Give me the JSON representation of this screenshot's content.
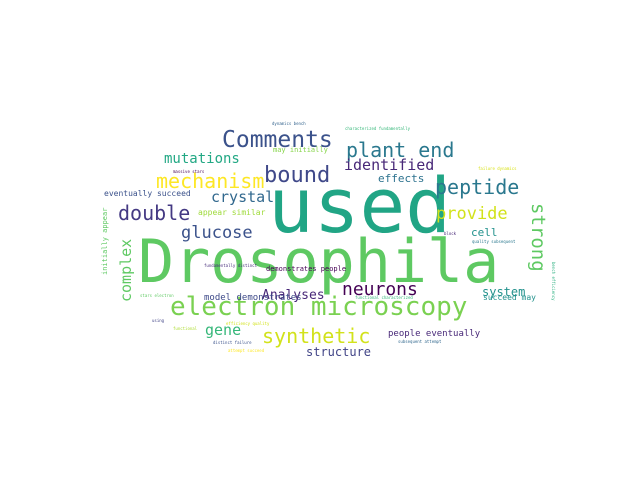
{
  "wordcloud": {
    "words": [
      {
        "text": "Drosophila",
        "color": "#5ec962"
      },
      {
        "text": "used",
        "color": "#21a585"
      },
      {
        "text": "electron microscopy",
        "color": "#7ad151"
      },
      {
        "text": "Comments",
        "color": "#3b528b"
      },
      {
        "text": "plant end",
        "color": "#2a788e"
      },
      {
        "text": "bound",
        "color": "#3f4889"
      },
      {
        "text": "mechanism",
        "color": "#fde725"
      },
      {
        "text": "peptide",
        "color": "#2a788e"
      },
      {
        "text": "double",
        "color": "#443983"
      },
      {
        "text": "synthetic",
        "color": "#d2e21b"
      },
      {
        "text": "neurons",
        "color": "#440154"
      },
      {
        "text": "strong",
        "color": "#5ec962"
      },
      {
        "text": "provide",
        "color": "#d2e21b"
      },
      {
        "text": "glucose",
        "color": "#3b528b"
      },
      {
        "text": "identified",
        "color": "#482878"
      },
      {
        "text": "mutations",
        "color": "#22a884"
      },
      {
        "text": "crystal",
        "color": "#31688e"
      },
      {
        "text": "complex",
        "color": "#5ec962"
      },
      {
        "text": "gene",
        "color": "#35b779"
      },
      {
        "text": "Analyses",
        "color": "#482878"
      },
      {
        "text": "structure",
        "color": "#414487"
      },
      {
        "text": "system",
        "color": "#21918c"
      },
      {
        "text": "cell",
        "color": "#21918c"
      },
      {
        "text": "effects",
        "color": "#2c728e"
      },
      {
        "text": "people eventually",
        "color": "#482878"
      },
      {
        "text": "model demonstrates",
        "color": "#3e4a89"
      },
      {
        "text": "succeed may",
        "color": "#21918c"
      },
      {
        "text": "eventually succeed",
        "color": "#3b528b"
      },
      {
        "text": "appear similar",
        "color": "#9fda3a"
      },
      {
        "text": "initially appear",
        "color": "#5ec962"
      },
      {
        "text": "may initially",
        "color": "#86d549"
      },
      {
        "text": "demonstrates people",
        "color": "#440154"
      },
      {
        "text": "fundamentally distinct",
        "color": "#472d7b"
      },
      {
        "text": "characterized fundamentally",
        "color": "#35b779"
      },
      {
        "text": "dynamics bench",
        "color": "#33638d"
      },
      {
        "text": "failure dynamics",
        "color": "#d8e219"
      },
      {
        "text": "massive stars",
        "color": "#440154"
      },
      {
        "text": "quality subsequent",
        "color": "#2a788e"
      },
      {
        "text": "bench efficiency",
        "color": "#29af7f"
      },
      {
        "text": "stars electron",
        "color": "#5ec962"
      },
      {
        "text": "attempt succeed",
        "color": "#fde725"
      },
      {
        "text": "distinct failure",
        "color": "#3b528b"
      },
      {
        "text": "subsequent attempt",
        "color": "#31688e"
      },
      {
        "text": "efficiency quality",
        "color": "#d2e21b"
      },
      {
        "text": "functional",
        "color": "#addc30"
      },
      {
        "text": "using",
        "color": "#414487"
      },
      {
        "text": "block",
        "color": "#482878"
      },
      {
        "text": "functional characterized",
        "color": "#35b779"
      }
    ]
  }
}
